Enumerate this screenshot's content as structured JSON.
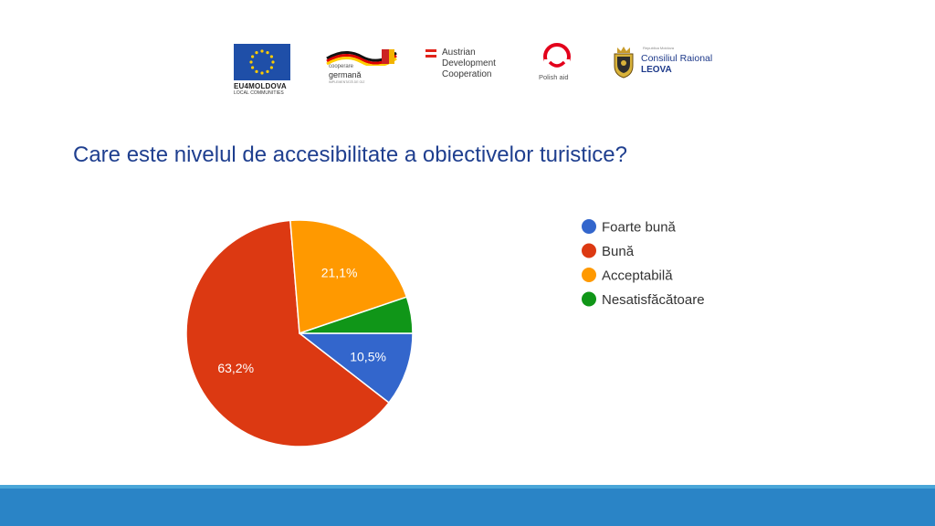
{
  "slide_title": "Care este nivelul de accesibilitate a obiectivelor turistice?",
  "logos": {
    "eu": {
      "line1": "EU4MOLDOVA",
      "line2": "LOCAL COMMUNITIES"
    },
    "germany": {
      "line1": "cooperare",
      "line2": "germană",
      "line3": "IMPLEMENTATĂ DE GIZ"
    },
    "austria": {
      "line1": "Austrian",
      "line2": "Development",
      "line3": "Cooperation"
    },
    "poland": {
      "label": "Polish aid"
    },
    "raion": {
      "line0": "Republica Moldova",
      "line1": "Consiliul Raional",
      "line2": "LEOVA"
    }
  },
  "chart_data": {
    "type": "pie",
    "title": "",
    "legend_position": "right",
    "slices": [
      {
        "label": "Foarte bună",
        "value": 10.5,
        "value_label": "10,5%",
        "color": "#3366cc"
      },
      {
        "label": "Bună",
        "value": 63.2,
        "value_label": "63,2%",
        "color": "#dc3912"
      },
      {
        "label": "Acceptabilă",
        "value": 21.1,
        "value_label": "21,1%",
        "color": "#ff9900"
      },
      {
        "label": "Nesatisfăcătoare",
        "value": 5.2,
        "value_label": "",
        "color": "#109618"
      }
    ]
  },
  "colors": {
    "title": "#1f3f8f",
    "footer": "#2a84c6",
    "footer_line": "#4aa6d8"
  }
}
